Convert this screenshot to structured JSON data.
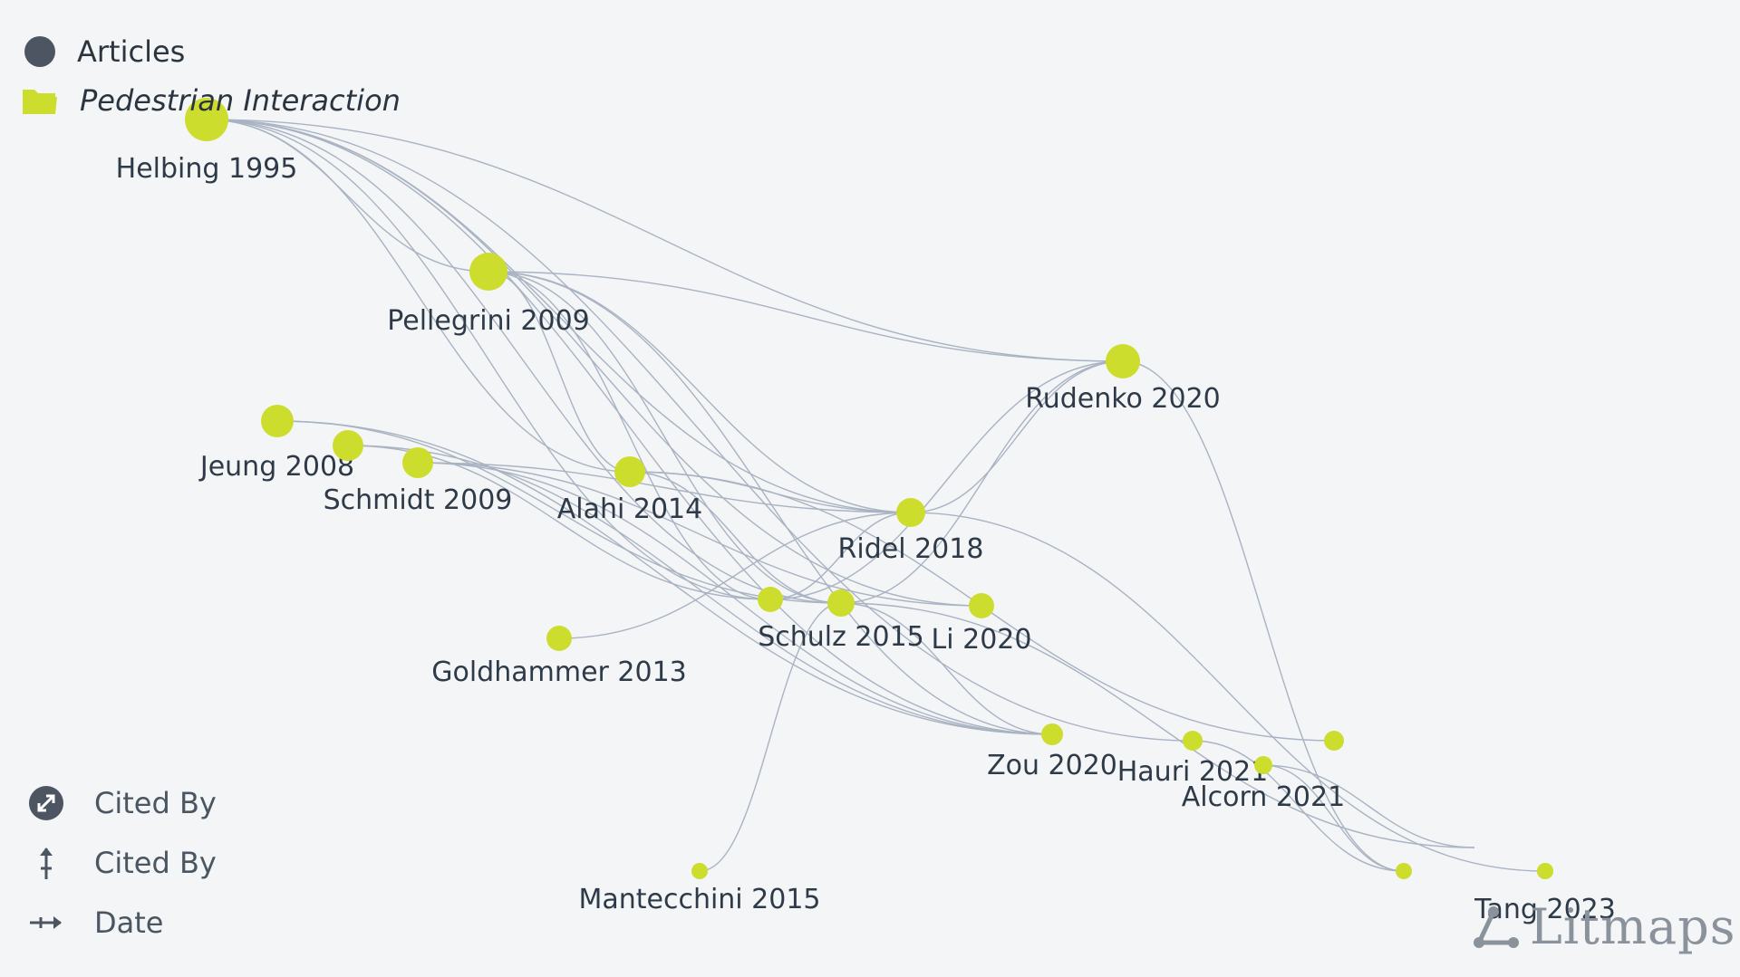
{
  "legend": {
    "articles_label": "Articles",
    "collection_label": "Pedestrian Interaction",
    "collection_color": "#cddd2d"
  },
  "bottom_legend": {
    "size_label": "Cited By",
    "y_axis_label": "Cited By",
    "x_axis_label": "Date"
  },
  "brand": {
    "name": "Litmaps"
  },
  "colors": {
    "node": "#cddd2d",
    "edge": "#a9b3c2",
    "label": "#2e3a47"
  },
  "nodes": [
    {
      "id": "helbing",
      "label": "Helbing 1995"
    },
    {
      "id": "pellegrini",
      "label": "Pellegrini 2009"
    },
    {
      "id": "rudenko",
      "label": "Rudenko 2020"
    },
    {
      "id": "jeung",
      "label": "Jeung 2008"
    },
    {
      "id": "n5",
      "label": ""
    },
    {
      "id": "schmidt",
      "label": "Schmidt 2009"
    },
    {
      "id": "alahi",
      "label": "Alahi 2014"
    },
    {
      "id": "ridel",
      "label": "Ridel 2018"
    },
    {
      "id": "goldhammer",
      "label": "Goldhammer 2013"
    },
    {
      "id": "n10",
      "label": ""
    },
    {
      "id": "schulz",
      "label": "Schulz 2015"
    },
    {
      "id": "li",
      "label": "Li 2020"
    },
    {
      "id": "zou",
      "label": "Zou 2020"
    },
    {
      "id": "hauri",
      "label": "Hauri 2021"
    },
    {
      "id": "alcorn",
      "label": "Alcorn 2021"
    },
    {
      "id": "n16",
      "label": ""
    },
    {
      "id": "mantecchini",
      "label": "Mantecchini 2015"
    },
    {
      "id": "n18",
      "label": ""
    },
    {
      "id": "n19",
      "label": ""
    },
    {
      "id": "tang",
      "label": "Tang 2023"
    }
  ],
  "edges": [
    [
      "helbing",
      "pellegrini"
    ],
    [
      "helbing",
      "rudenko"
    ],
    [
      "helbing",
      "ridel"
    ],
    [
      "helbing",
      "schulz"
    ],
    [
      "helbing",
      "zou"
    ],
    [
      "helbing",
      "n10"
    ],
    [
      "helbing",
      "alahi"
    ],
    [
      "helbing",
      "li"
    ],
    [
      "helbing",
      "hauri"
    ],
    [
      "pellegrini",
      "rudenko"
    ],
    [
      "pellegrini",
      "ridel"
    ],
    [
      "pellegrini",
      "schulz"
    ],
    [
      "pellegrini",
      "zou"
    ],
    [
      "pellegrini",
      "alahi"
    ],
    [
      "pellegrini",
      "n10"
    ],
    [
      "jeung",
      "zou"
    ],
    [
      "jeung",
      "schulz"
    ],
    [
      "n5",
      "zou"
    ],
    [
      "n5",
      "n10"
    ],
    [
      "schmidt",
      "ridel"
    ],
    [
      "schmidt",
      "zou"
    ],
    [
      "schmidt",
      "li"
    ],
    [
      "alahi",
      "ridel"
    ],
    [
      "alahi",
      "schulz"
    ],
    [
      "alahi",
      "n16"
    ],
    [
      "ridel",
      "rudenko"
    ],
    [
      "ridel",
      "goldhammer"
    ],
    [
      "ridel",
      "n10"
    ],
    [
      "ridel",
      "n18"
    ],
    [
      "rudenko",
      "schulz"
    ],
    [
      "rudenko",
      "n10"
    ],
    [
      "rudenko",
      "n19"
    ],
    [
      "schulz",
      "mantecchini"
    ],
    [
      "schulz",
      "zou"
    ],
    [
      "schulz",
      "n17b"
    ],
    [
      "hauri",
      "n19"
    ],
    [
      "alcorn",
      "n19"
    ],
    [
      "alcorn",
      "n17"
    ]
  ]
}
